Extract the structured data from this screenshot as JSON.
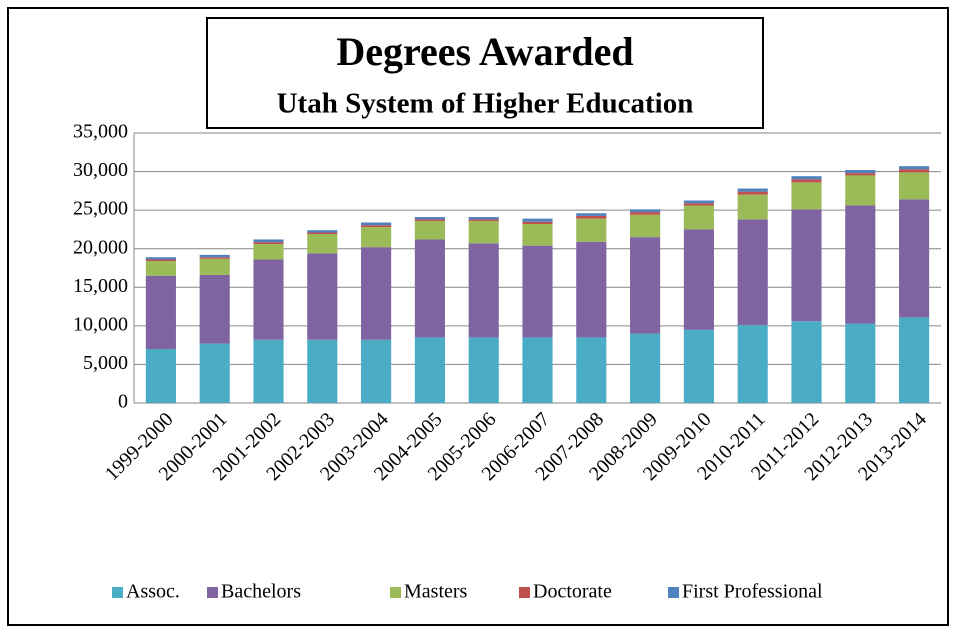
{
  "chart_data": {
    "type": "stacked_bar",
    "title": "Degrees Awarded",
    "subtitle": "Utah System of Higher Education",
    "categories": [
      "1999-2000",
      "2000-2001",
      "2001-2002",
      "2002-2003",
      "2003-2004",
      "2004-2005",
      "2005-2006",
      "2006-2007",
      "2007-2008",
      "2008-2009",
      "2009-2010",
      "2010-2011",
      "2011-2012",
      "2012-2013",
      "2013-2014"
    ],
    "series": [
      {
        "name": "Assoc.",
        "color": "#4bacc6",
        "values": [
          7000,
          7700,
          8200,
          8200,
          8200,
          8500,
          8500,
          8500,
          8500,
          9000,
          9500,
          10100,
          10600,
          10300,
          11100
        ]
      },
      {
        "name": "Bachelors",
        "color": "#8064a2",
        "values": [
          9500,
          8900,
          10400,
          11200,
          12000,
          12700,
          12200,
          11900,
          12400,
          12500,
          13000,
          13700,
          14500,
          15300,
          15300
        ]
      },
      {
        "name": "Masters",
        "color": "#9bbb59",
        "values": [
          1900,
          2100,
          2000,
          2500,
          2600,
          2400,
          2900,
          2800,
          3000,
          2900,
          3100,
          3200,
          3500,
          3900,
          3500
        ]
      },
      {
        "name": "Doctorate",
        "color": "#c0504d",
        "values": [
          200,
          200,
          250,
          200,
          250,
          200,
          200,
          300,
          350,
          350,
          300,
          400,
          400,
          300,
          400
        ]
      },
      {
        "name": "First Professional",
        "color": "#4f81bd",
        "values": [
          300,
          300,
          350,
          300,
          350,
          300,
          300,
          400,
          350,
          350,
          350,
          400,
          400,
          400,
          400
        ]
      }
    ],
    "ylim": [
      0,
      35000
    ],
    "yticks": [
      0,
      {
        "value": 5000,
        "label": "5,000"
      },
      {
        "value": 10000,
        "label": "10,000"
      },
      {
        "value": 15000,
        "label": "15,000"
      },
      {
        "value": 20000,
        "label": "20,000"
      },
      {
        "value": 25000,
        "label": "25,000"
      },
      {
        "value": 30000,
        "label": "30,000"
      },
      {
        "value": 35000,
        "label": "35,000"
      }
    ],
    "grid": true,
    "legend": "bottom"
  }
}
